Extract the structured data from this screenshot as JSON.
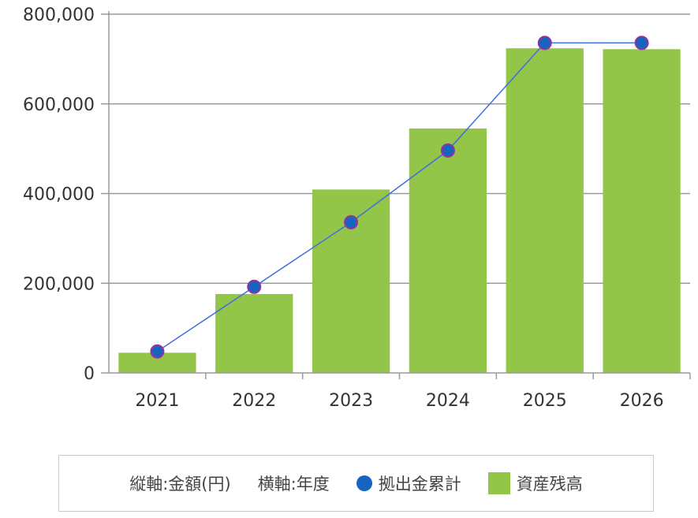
{
  "chart_data": {
    "type": "bar",
    "categories": [
      "2021",
      "2022",
      "2023",
      "2024",
      "2025",
      "2026"
    ],
    "series": [
      {
        "name": "資産残高",
        "type": "bar",
        "color": "#93c548",
        "values": [
          45000,
          176000,
          409000,
          545000,
          724000,
          722000
        ]
      },
      {
        "name": "拠出金累計",
        "type": "line",
        "color": "#1565c0",
        "line_color": "#3f6fe0",
        "marker_edge_color": "#9b2fa0",
        "values": [
          48000,
          192000,
          336000,
          496000,
          736000,
          736000
        ]
      }
    ],
    "ylim": [
      0,
      800000
    ],
    "yticks": [
      0,
      200000,
      400000,
      600000,
      800000
    ],
    "ytick_labels": [
      "0",
      "200,000",
      "400,000",
      "600,000",
      "800,000"
    ],
    "grid": true,
    "legend_position": "bottom"
  },
  "legend": {
    "vertical_axis": "縦軸:金額(円)",
    "horizontal_axis": "横軸:年度",
    "line_series": "拠出金累計",
    "bar_series": "資産残高"
  }
}
